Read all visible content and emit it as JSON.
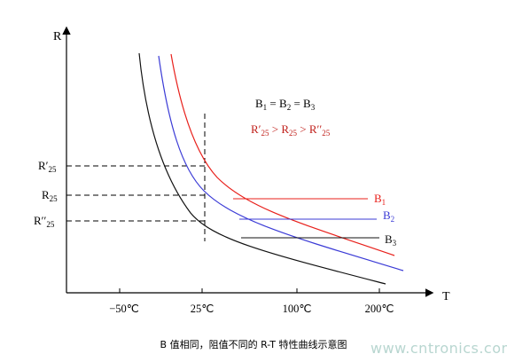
{
  "axes": {
    "x_label": "T",
    "y_label": "R"
  },
  "x_ticks": [
    "−50℃",
    "25℃",
    "100℃",
    "200℃"
  ],
  "y_ticks": [
    {
      "base": "R",
      "prime": "′",
      "sub": "25"
    },
    {
      "base": "R",
      "prime": "",
      "sub": "25"
    },
    {
      "base": "R",
      "prime": "′′",
      "sub": "25"
    }
  ],
  "equations": {
    "line1": [
      {
        "t": "B",
        "sub": "1"
      },
      {
        "t": " = "
      },
      {
        "t": "B",
        "sub": "2"
      },
      {
        "t": " = "
      },
      {
        "t": "B",
        "sub": "3"
      }
    ],
    "line2": [
      {
        "t": "R′",
        "sub": "25"
      },
      {
        "t": " > "
      },
      {
        "t": "R",
        "sub": "25"
      },
      {
        "t": " > "
      },
      {
        "t": "R′′",
        "sub": "25"
      }
    ]
  },
  "curves": [
    {
      "id": "B1",
      "label": "B",
      "sub": "1",
      "color": "#e8201b"
    },
    {
      "id": "B2",
      "label": "B",
      "sub": "2",
      "color": "#3b3bd6"
    },
    {
      "id": "B3",
      "label": "B",
      "sub": "3",
      "color": "#111111"
    }
  ],
  "colors": {
    "axis": "#000000",
    "eq_line1": "#000000",
    "eq_line2": "#c0201b"
  },
  "caption": "B 值相同，阻值不同的 R-T 特性曲线示意图",
  "watermark": "www.cntronics.com"
}
